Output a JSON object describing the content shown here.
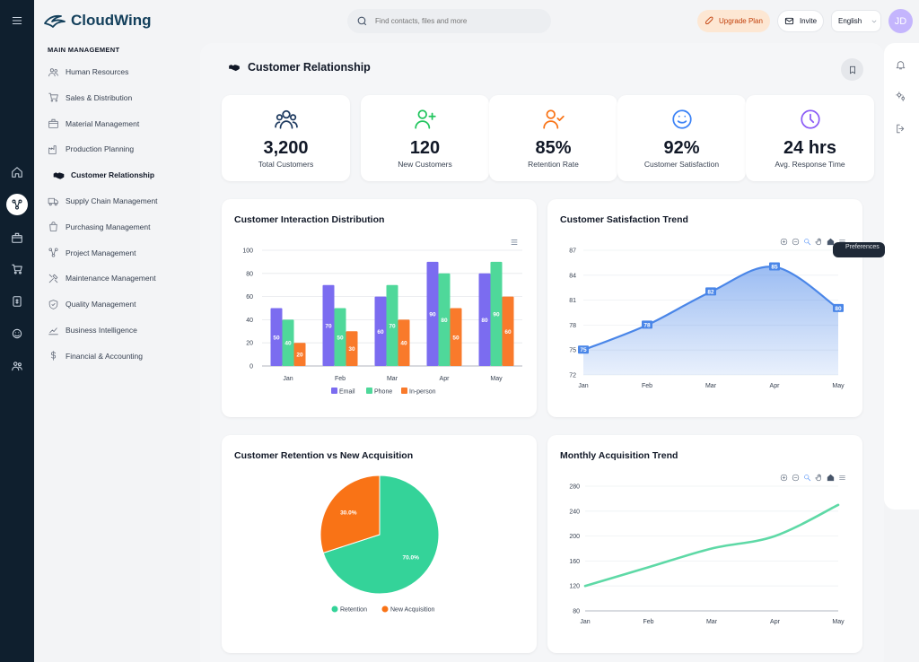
{
  "brand": {
    "name": "CloudWing"
  },
  "search": {
    "placeholder": "Find contacts, files and more"
  },
  "header": {
    "upgrade_label": "Upgrade Plan",
    "invite_label": "Invite",
    "language": "English",
    "avatar_initials": "JD"
  },
  "sidebar": {
    "section_title": "MAIN MANAGEMENT",
    "items": [
      {
        "label": "Human Resources",
        "icon": "users-icon"
      },
      {
        "label": "Sales & Distribution",
        "icon": "cart-icon"
      },
      {
        "label": "Material Management",
        "icon": "box-icon"
      },
      {
        "label": "Production Planning",
        "icon": "factory-icon"
      },
      {
        "label": "Customer Relationship",
        "icon": "handshake-icon",
        "active": true
      },
      {
        "label": "Supply Chain Management",
        "icon": "truck-icon"
      },
      {
        "label": "Purchasing Management",
        "icon": "bag-icon"
      },
      {
        "label": "Project Management",
        "icon": "project-icon"
      },
      {
        "label": "Maintenance Management",
        "icon": "tools-icon"
      },
      {
        "label": "Quality Management",
        "icon": "shield-icon"
      },
      {
        "label": "Business Intelligence",
        "icon": "chart-line-icon"
      },
      {
        "label": "Financial & Accounting",
        "icon": "dollar-icon"
      }
    ]
  },
  "page": {
    "title": "Customer Relationship"
  },
  "kpis": [
    {
      "value": "3,200",
      "label": "Total Customers",
      "icon": "users-icon",
      "color": "#1e3a5f"
    },
    {
      "value": "120",
      "label": "New Customers",
      "icon": "user-plus-icon",
      "color": "#22c55e"
    },
    {
      "value": "85%",
      "label": "Retention Rate",
      "icon": "user-check-icon",
      "color": "#f97316"
    },
    {
      "value": "92%",
      "label": "Customer Satisfaction",
      "icon": "smile-icon",
      "color": "#3b82f6"
    },
    {
      "value": "24 hrs",
      "label": "Avg. Response Time",
      "icon": "clock-icon",
      "color": "#8b5cf6"
    }
  ],
  "cards": {
    "interaction": "Customer Interaction Distribution",
    "satisfaction": "Customer Satisfaction Trend",
    "retention": "Customer Retention vs New Acquisition",
    "acquisition": "Monthly Acquisition Trend"
  },
  "tooltip_text": "Preferences",
  "colors": {
    "email": "#7b6cf0",
    "phone": "#4fd89a",
    "inperson": "#f97a2b",
    "line_blue": "#4a86e8",
    "line_green": "#5ed9a6",
    "pie_green": "#34d399",
    "pie_orange": "#f97316"
  },
  "chart_data": [
    {
      "type": "bar",
      "title": "Customer Interaction Distribution",
      "categories": [
        "Jan",
        "Feb",
        "Mar",
        "Apr",
        "May"
      ],
      "series": [
        {
          "name": "Email",
          "values": [
            50,
            70,
            60,
            90,
            80
          ]
        },
        {
          "name": "Phone",
          "values": [
            40,
            50,
            70,
            80,
            90
          ]
        },
        {
          "name": "In-person",
          "values": [
            20,
            30,
            40,
            50,
            60
          ]
        }
      ],
      "ylim": [
        0,
        100
      ],
      "yticks": [
        0,
        20,
        40,
        60,
        80,
        100
      ],
      "legend": "bottom"
    },
    {
      "type": "area",
      "title": "Customer Satisfaction Trend",
      "categories": [
        "Jan",
        "Feb",
        "Mar",
        "Apr",
        "May"
      ],
      "values": [
        75,
        78,
        82,
        85,
        80
      ],
      "ylim": [
        72,
        87
      ],
      "yticks": [
        72,
        75,
        78,
        81,
        84,
        87
      ]
    },
    {
      "type": "pie",
      "title": "Customer Retention vs New Acquisition",
      "slices": [
        {
          "name": "Retention",
          "value": 70.0,
          "label": "70.0%"
        },
        {
          "name": "New Acquisition",
          "value": 30.0,
          "label": "30.0%"
        }
      ],
      "legend": "bottom"
    },
    {
      "type": "line",
      "title": "Monthly Acquisition Trend",
      "categories": [
        "Jan",
        "Feb",
        "Mar",
        "Apr",
        "May"
      ],
      "values": [
        120,
        150,
        180,
        200,
        250
      ],
      "ylim": [
        80,
        280
      ],
      "yticks": [
        80,
        120,
        160,
        200,
        240,
        280
      ]
    }
  ]
}
